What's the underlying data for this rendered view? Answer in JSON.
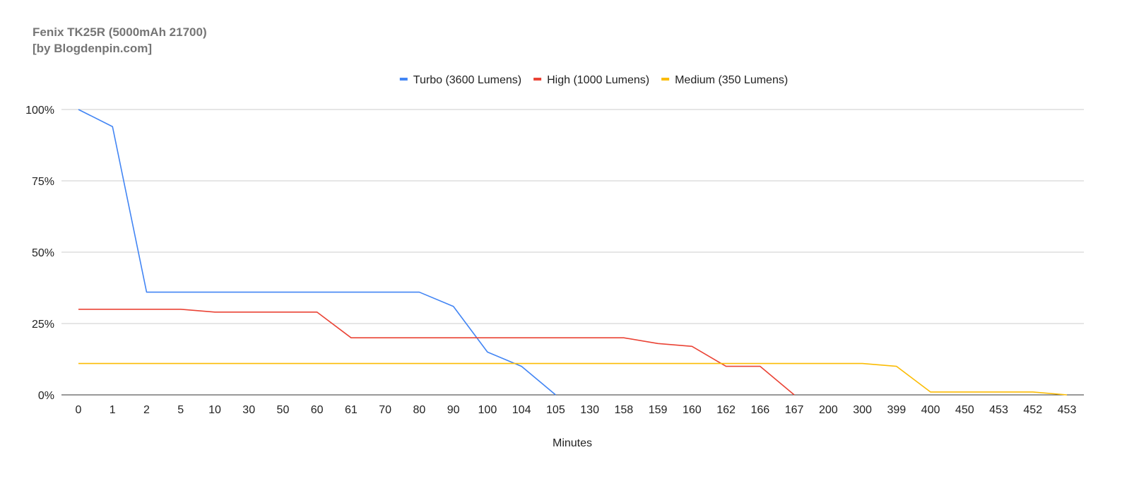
{
  "chart_data": {
    "type": "line",
    "title": "Fenix TK25R (5000mAh 21700)",
    "subtitle": "[by Blogdenpin.com]",
    "xlabel": "Minutes",
    "ylabel": "",
    "categories": [
      "0",
      "1",
      "2",
      "5",
      "10",
      "30",
      "50",
      "60",
      "61",
      "70",
      "80",
      "90",
      "100",
      "104",
      "105",
      "130",
      "158",
      "159",
      "160",
      "162",
      "166",
      "167",
      "200",
      "300",
      "399",
      "400",
      "450",
      "453",
      "452",
      "453"
    ],
    "yticks": [
      "0%",
      "25%",
      "50%",
      "75%",
      "100%"
    ],
    "ylim": [
      0,
      100
    ],
    "grid": true,
    "legend": "top",
    "series": [
      {
        "name": "Turbo (3600 Lumens)",
        "color": "#4285f4",
        "values": [
          100,
          94,
          36,
          36,
          36,
          36,
          36,
          36,
          36,
          36,
          36,
          31,
          15,
          10,
          0,
          null,
          null,
          null,
          null,
          null,
          null,
          null,
          null,
          null,
          null,
          null,
          null,
          null,
          null,
          null
        ]
      },
      {
        "name": "High (1000 Lumens)",
        "color": "#ea4335",
        "values": [
          30,
          30,
          30,
          30,
          29,
          29,
          29,
          29,
          20,
          20,
          20,
          20,
          20,
          20,
          20,
          20,
          20,
          18,
          17,
          10,
          10,
          0,
          null,
          null,
          null,
          null,
          null,
          null,
          null,
          null
        ]
      },
      {
        "name": "Medium (350 Lumens)",
        "color": "#fbbc04",
        "values": [
          11,
          11,
          11,
          11,
          11,
          11,
          11,
          11,
          11,
          11,
          11,
          11,
          11,
          11,
          11,
          11,
          11,
          11,
          11,
          11,
          11,
          11,
          11,
          11,
          10,
          1,
          1,
          1,
          1,
          0
        ]
      }
    ]
  }
}
